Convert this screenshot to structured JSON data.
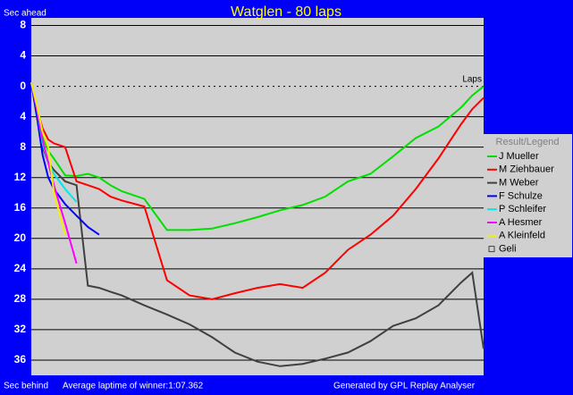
{
  "chart_data": {
    "type": "line",
    "title": "Watglen - 80 laps",
    "y_label_top": "Sec ahead",
    "y_label_bottom": "Sec behind",
    "x_label": "Laps",
    "footer_left": "Average laptime of winner:1:07.362",
    "footer_right": "Generated by GPL Replay Analyser",
    "legend_title": "Result/Legend",
    "legend": "right",
    "x": [
      0,
      1,
      2,
      3,
      4,
      6,
      8,
      10,
      12,
      14,
      16,
      20,
      24,
      28,
      32,
      36,
      40,
      44,
      48,
      52,
      56,
      60,
      64,
      68,
      72,
      76,
      78,
      80
    ],
    "xlim": [
      0,
      80
    ],
    "ylim": [
      -9,
      38
    ],
    "y_inverted": true,
    "grid": true,
    "yticks": [
      {
        "value": -8,
        "label": "8"
      },
      {
        "value": -4,
        "label": "4"
      },
      0,
      4,
      8,
      12,
      16,
      20,
      24,
      28,
      32,
      36
    ],
    "series": [
      {
        "name": "J Mueller",
        "color": "#00e000",
        "values": [
          -0.5,
          3,
          6.5,
          8.5,
          9.5,
          11.7,
          11.8,
          11.5,
          12,
          13,
          13.8,
          14.8,
          18.9,
          18.9,
          18.7,
          18,
          17.2,
          16.3,
          15.6,
          14.5,
          12.5,
          11.5,
          9.2,
          6.8,
          5.3,
          2.8,
          1.2,
          0
        ]
      },
      {
        "name": "M Ziehbauer",
        "color": "#ff0000",
        "values": [
          -0.5,
          3,
          5.5,
          7,
          7.5,
          8,
          12.5,
          13,
          13.5,
          14.5,
          15,
          15.8,
          25.5,
          27.5,
          28,
          27.2,
          26.5,
          26,
          26.5,
          24.5,
          21.5,
          19.5,
          17,
          13.5,
          9.5,
          5,
          3,
          1.5
        ]
      },
      {
        "name": "M Weber",
        "color": "#404040",
        "values": [
          -0.5,
          4,
          8,
          10,
          11,
          12.5,
          13,
          26.2,
          26.5,
          27,
          27.5,
          28.8,
          30,
          31.3,
          33,
          35,
          36.2,
          36.8,
          36.5,
          35.8,
          35,
          33.5,
          31.5,
          30.5,
          28.8,
          25.8,
          24.5,
          34.5
        ]
      },
      {
        "name": "F Schulze",
        "color": "#0000ff",
        "values": [
          -0.5,
          4,
          9,
          12,
          13.5,
          15.5,
          17,
          18.5,
          19.5,
          null,
          null,
          null,
          null,
          null,
          null,
          null,
          null,
          null,
          null,
          null,
          null,
          null,
          null,
          null,
          null,
          null,
          null,
          null
        ]
      },
      {
        "name": "P Schleifer",
        "color": "#00e8e8",
        "values": [
          -0.5,
          3,
          7.5,
          10,
          11.5,
          13.5,
          15.2,
          null,
          null,
          null,
          null,
          null,
          null,
          null,
          null,
          null,
          null,
          null,
          null,
          null,
          null,
          null,
          null,
          null,
          null,
          null,
          null,
          null
        ]
      },
      {
        "name": "A Hesmer",
        "color": "#ff00ff",
        "values": [
          -0.5,
          3,
          7,
          10,
          13,
          18,
          23.3,
          null,
          null,
          null,
          null,
          null,
          null,
          null,
          null,
          null,
          null,
          null,
          null,
          null,
          null,
          null,
          null,
          null,
          null,
          null,
          null,
          null
        ]
      },
      {
        "name": "A Kleinfeld",
        "color": "#f0f000",
        "values": [
          -0.5,
          2.5,
          6,
          8,
          14,
          19.5,
          null,
          null,
          null,
          null,
          null,
          null,
          null,
          null,
          null,
          null,
          null,
          null,
          null,
          null,
          null,
          null,
          null,
          null,
          null,
          null,
          null,
          null
        ]
      },
      {
        "name": "Geli",
        "color": "#404040",
        "legend_symbol": "square",
        "values": [
          null,
          null,
          null,
          null,
          null,
          null,
          null,
          null,
          null,
          null,
          null,
          null,
          null,
          null,
          null,
          null,
          null,
          null,
          null,
          null,
          null,
          null,
          null,
          null,
          null,
          null,
          null,
          null
        ]
      }
    ]
  }
}
